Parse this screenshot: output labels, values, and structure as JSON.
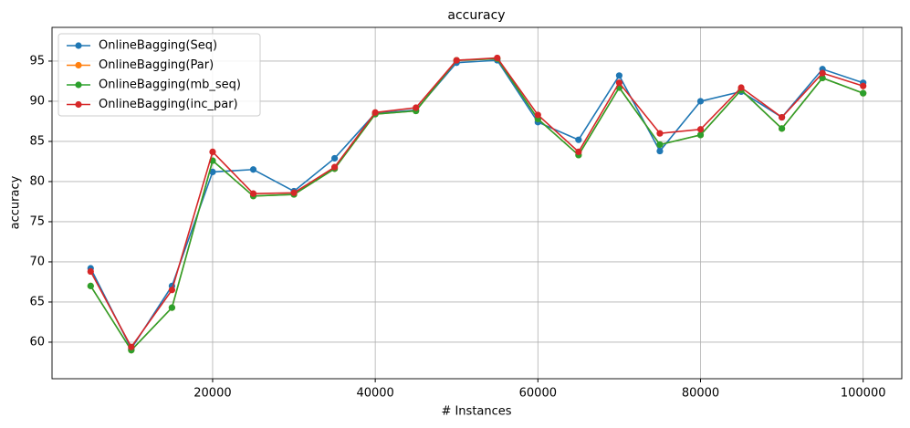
{
  "chart_data": {
    "type": "line",
    "title": "accuracy",
    "x_label": "# Instances",
    "y_label": "accuracy",
    "x": [
      5000,
      10000,
      15000,
      20000,
      25000,
      30000,
      35000,
      40000,
      45000,
      50000,
      55000,
      60000,
      65000,
      70000,
      75000,
      80000,
      85000,
      90000,
      95000,
      100000
    ],
    "series": [
      {
        "name": "OnlineBagging(Seq)",
        "color": "#1f77b4",
        "values": [
          69.2,
          59.2,
          67.0,
          81.2,
          81.5,
          78.8,
          82.9,
          88.5,
          88.9,
          94.8,
          95.1,
          87.4,
          85.2,
          93.2,
          83.8,
          90.0,
          91.2,
          88.0,
          94.0,
          92.3
        ]
      },
      {
        "name": "OnlineBagging(Par)",
        "color": "#ff7f0e",
        "values": [
          67.0,
          59.0,
          64.3,
          82.6,
          78.2,
          78.4,
          81.6,
          88.4,
          88.8,
          95.1,
          95.3,
          87.8,
          83.3,
          91.7,
          84.6,
          85.8,
          91.4,
          86.6,
          92.9,
          91.0
        ]
      },
      {
        "name": "OnlineBagging(mb_seq)",
        "color": "#2ca02c",
        "values": [
          67.0,
          59.0,
          64.3,
          82.6,
          78.2,
          78.4,
          81.6,
          88.4,
          88.8,
          95.1,
          95.3,
          87.8,
          83.3,
          91.7,
          84.6,
          85.8,
          91.4,
          86.6,
          92.9,
          91.0
        ]
      },
      {
        "name": "OnlineBagging(inc_par)",
        "color": "#d62728",
        "values": [
          68.8,
          59.4,
          66.5,
          83.7,
          78.5,
          78.6,
          81.8,
          88.6,
          89.2,
          95.1,
          95.4,
          88.3,
          83.7,
          92.3,
          86.0,
          86.5,
          91.7,
          88.0,
          93.5,
          91.9
        ]
      }
    ],
    "xlim": [
      250,
      104750
    ],
    "ylim": [
      55.45,
      99.2
    ],
    "xticks": [
      20000,
      40000,
      60000,
      80000,
      100000
    ],
    "yticks": [
      60,
      65,
      70,
      75,
      80,
      85,
      90,
      95
    ],
    "grid": true,
    "legend": "upper left"
  }
}
